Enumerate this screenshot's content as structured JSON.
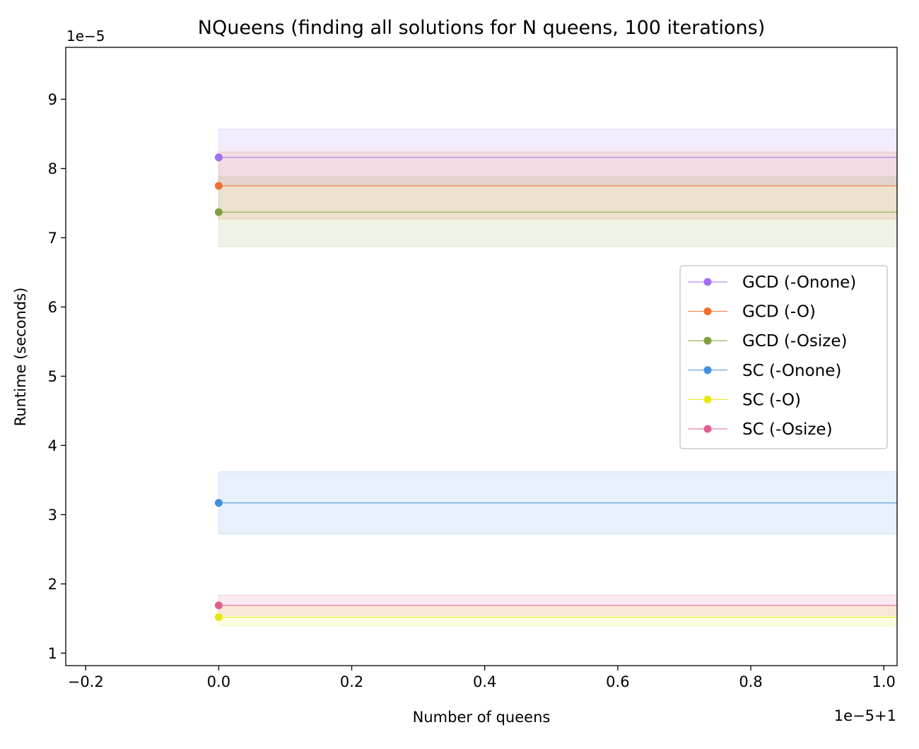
{
  "chart_data": {
    "type": "line",
    "title": "NQueens (finding all solutions for N queens, 100 iterations)",
    "xlabel": "Number of queens",
    "ylabel": "Runtime (seconds)",
    "y_offset_label": "1e−5",
    "x_offset_label": "1e−5+1",
    "xlim": [
      -0.23,
      1.02
    ],
    "ylim": [
      0.82,
      9.75
    ],
    "x_ticks": [
      -0.2,
      0.0,
      0.2,
      0.4,
      0.6,
      0.8,
      1.0
    ],
    "x_tick_labels": [
      "−0.2",
      "0.0",
      "0.2",
      "0.4",
      "0.6",
      "0.8",
      "1.0"
    ],
    "y_ticks": [
      1,
      2,
      3,
      4,
      5,
      6,
      7,
      8,
      9
    ],
    "y_tick_labels": [
      "1",
      "2",
      "3",
      "4",
      "5",
      "6",
      "7",
      "8",
      "9"
    ],
    "grid": false,
    "legend_position": "center-right",
    "series": [
      {
        "name": "GCD (-Onone)",
        "color": "#a070f0",
        "x": [
          0.0
        ],
        "y": [
          8.16
        ],
        "band": [
          7.75,
          8.57
        ]
      },
      {
        "name": "GCD (-O)",
        "color": "#f07030",
        "x": [
          0.0
        ],
        "y": [
          7.75
        ],
        "band": [
          7.27,
          8.24
        ]
      },
      {
        "name": "GCD (-Osize)",
        "color": "#80a040",
        "x": [
          0.0
        ],
        "y": [
          7.37
        ],
        "band": [
          6.87,
          7.88
        ]
      },
      {
        "name": "SC (-Onone)",
        "color": "#4090e0",
        "x": [
          0.0
        ],
        "y": [
          3.17
        ],
        "band": [
          2.72,
          3.62
        ]
      },
      {
        "name": "SC (-O)",
        "color": "#e8e810",
        "x": [
          0.0
        ],
        "y": [
          1.52
        ],
        "band": [
          1.39,
          1.69
        ]
      },
      {
        "name": "SC (-Osize)",
        "color": "#e06090",
        "x": [
          0.0
        ],
        "y": [
          1.69
        ],
        "band": [
          1.55,
          1.84
        ]
      }
    ]
  }
}
